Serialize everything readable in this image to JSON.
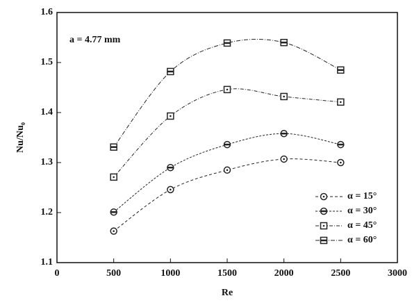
{
  "chart_data": {
    "type": "line",
    "annotation": "a = 4.77 mm",
    "xlabel": "Re",
    "ylabel": "Nu/Nu₀",
    "x": [
      500,
      1000,
      1500,
      2000,
      2500
    ],
    "xlim": [
      0,
      3000
    ],
    "xticks": [
      0,
      500,
      1000,
      1500,
      2000,
      2500,
      3000
    ],
    "ylim": [
      1.1,
      1.6
    ],
    "yticks": [
      1.1,
      1.2,
      1.3,
      1.4,
      1.5,
      1.6
    ],
    "legend": "lower right",
    "series": [
      {
        "name": "α = 15°",
        "color": "#222222",
        "marker": "circle-dot",
        "values": [
          1.163,
          1.246,
          1.285,
          1.307,
          1.3
        ]
      },
      {
        "name": "α = 30°",
        "color": "#222222",
        "marker": "circle-bar",
        "values": [
          1.201,
          1.29,
          1.336,
          1.358,
          1.336
        ]
      },
      {
        "name": "α = 45°",
        "color": "#222222",
        "marker": "square-dot",
        "values": [
          1.271,
          1.393,
          1.446,
          1.432,
          1.421
        ]
      },
      {
        "name": "α = 60°",
        "color": "#222222",
        "marker": "square-bar",
        "values": [
          1.331,
          1.482,
          1.539,
          1.54,
          1.485
        ]
      }
    ]
  }
}
